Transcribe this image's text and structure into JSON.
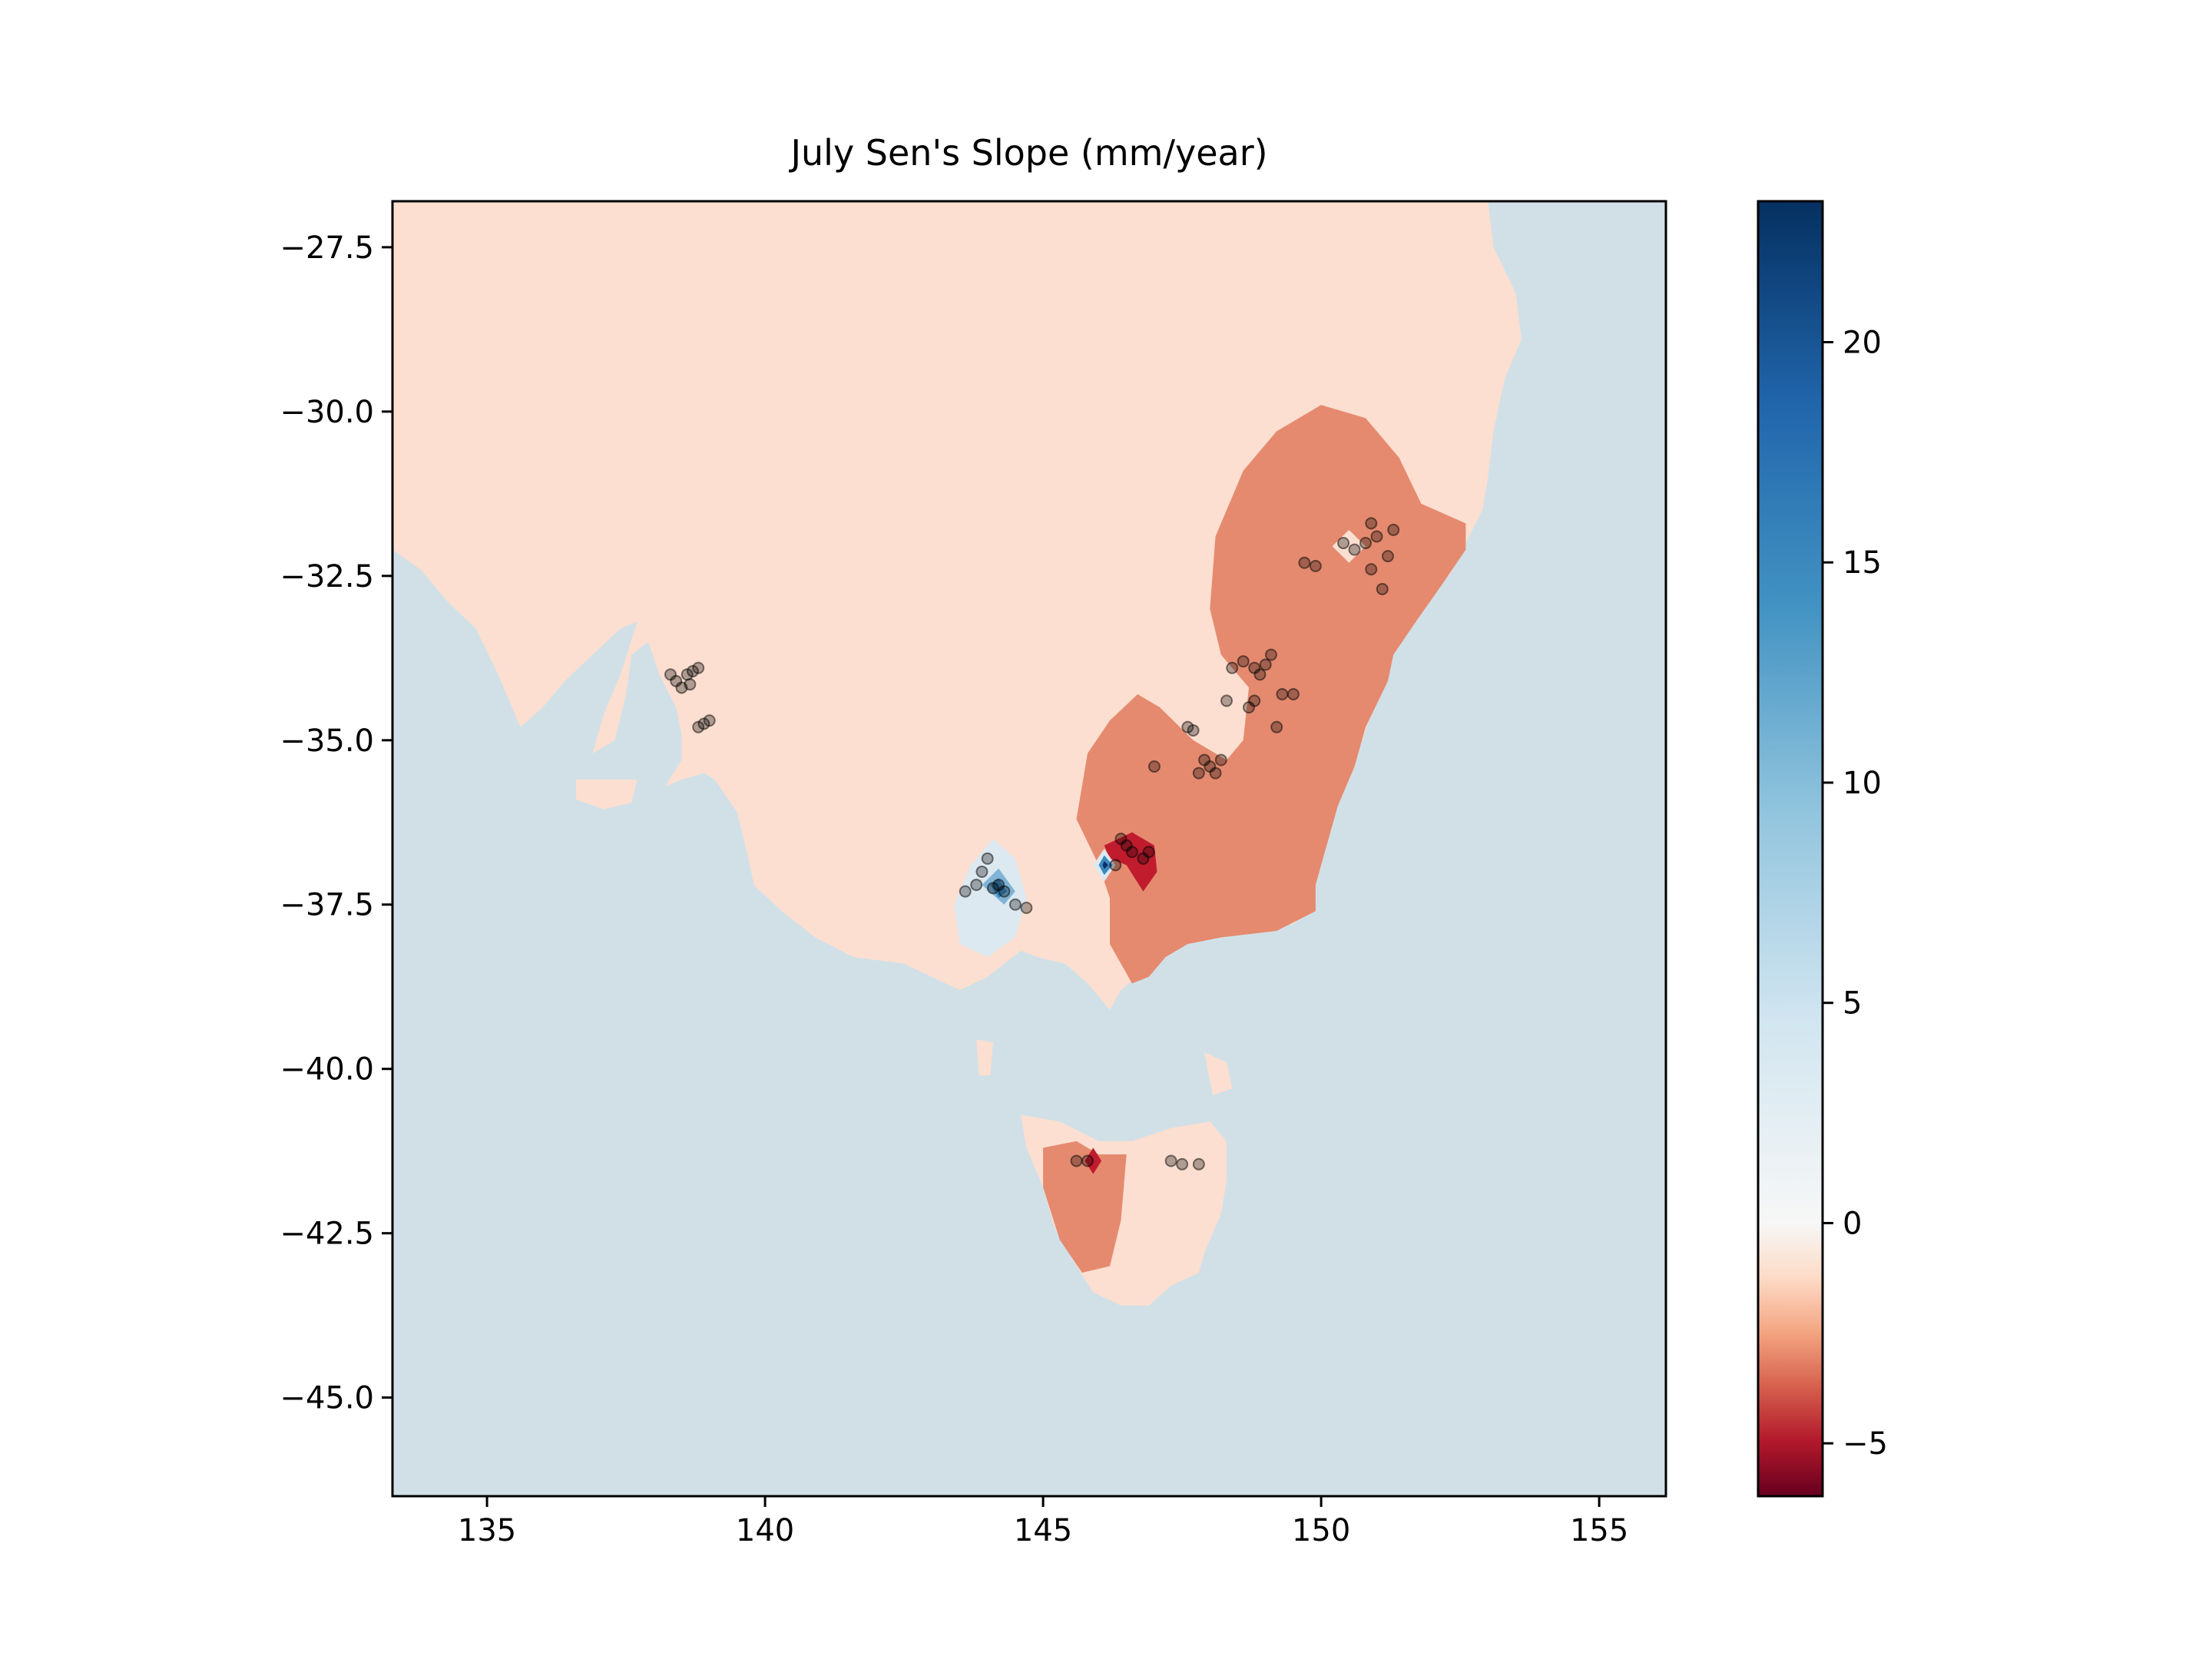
{
  "chart_data": {
    "type": "heatmap",
    "title": "July Sen's Slope (mm/year)",
    "xlabel": "",
    "ylabel": "",
    "xlim": [
      133.3,
      156.2
    ],
    "ylim": [
      -46.5,
      -26.8
    ],
    "x_ticks": [
      135,
      140,
      145,
      150,
      155
    ],
    "x_tick_labels": [
      "135",
      "140",
      "145",
      "150",
      "155"
    ],
    "y_ticks": [
      -27.5,
      -30.0,
      -32.5,
      -35.0,
      -37.5,
      -40.0,
      -42.5,
      -45.0
    ],
    "y_tick_labels": [
      "−27.5",
      "−30.0",
      "−32.5",
      "−35.0",
      "−37.5",
      "−40.0",
      "−42.5",
      "−45.0"
    ],
    "grid": false,
    "colorbar": {
      "colormap": "RdBu",
      "range": [
        -6.2,
        23.2
      ],
      "ticks": [
        -5,
        0,
        5,
        10,
        15,
        20
      ],
      "tick_labels": [
        "−5",
        "0",
        "5",
        "10",
        "15",
        "20"
      ],
      "placement": "right"
    },
    "colors": {
      "ocean": "#d1e0e7",
      "land_background": "#fcdfd0",
      "negative_region": "#e58a6f",
      "strong_negative": "#c01c2e",
      "positive_region": "#dde9f1",
      "strong_positive": "#3b89be"
    },
    "stations": [
      [
        138.3,
        -34.0
      ],
      [
        138.4,
        -34.1
      ],
      [
        138.5,
        -34.2
      ],
      [
        138.6,
        -34.0
      ],
      [
        138.7,
        -33.95
      ],
      [
        138.8,
        -33.9
      ],
      [
        138.65,
        -34.15
      ],
      [
        138.8,
        -34.8
      ],
      [
        138.9,
        -34.75
      ],
      [
        139.0,
        -34.7
      ],
      [
        143.9,
        -37.0
      ],
      [
        144.0,
        -36.8
      ],
      [
        143.8,
        -37.2
      ],
      [
        144.1,
        -37.25
      ],
      [
        144.3,
        -37.3
      ],
      [
        144.5,
        -37.5
      ],
      [
        144.7,
        -37.55
      ],
      [
        143.6,
        -37.3
      ],
      [
        144.2,
        -37.2
      ],
      [
        146.4,
        -36.5
      ],
      [
        146.6,
        -36.7
      ],
      [
        146.5,
        -36.6
      ],
      [
        146.8,
        -36.8
      ],
      [
        146.3,
        -36.9
      ],
      [
        146.9,
        -36.7
      ],
      [
        147.0,
        -35.4
      ],
      [
        147.6,
        -34.8
      ],
      [
        147.7,
        -34.85
      ],
      [
        147.9,
        -35.3
      ],
      [
        148.0,
        -35.4
      ],
      [
        148.2,
        -35.3
      ],
      [
        148.1,
        -35.5
      ],
      [
        147.8,
        -35.5
      ],
      [
        148.4,
        -33.9
      ],
      [
        148.6,
        -33.8
      ],
      [
        148.8,
        -33.9
      ],
      [
        149.0,
        -33.85
      ],
      [
        148.9,
        -34.0
      ],
      [
        149.1,
        -33.7
      ],
      [
        148.7,
        -34.5
      ],
      [
        148.8,
        -34.4
      ],
      [
        149.3,
        -34.3
      ],
      [
        149.5,
        -34.3
      ],
      [
        149.2,
        -34.8
      ],
      [
        148.3,
        -34.4
      ],
      [
        149.7,
        -32.3
      ],
      [
        149.9,
        -32.35
      ],
      [
        150.4,
        -32.0
      ],
      [
        150.6,
        -32.1
      ],
      [
        150.8,
        -32.0
      ],
      [
        151.0,
        -31.9
      ],
      [
        150.9,
        -31.7
      ],
      [
        151.3,
        -31.8
      ],
      [
        151.2,
        -32.2
      ],
      [
        151.1,
        -32.7
      ],
      [
        150.9,
        -32.4
      ],
      [
        145.6,
        -41.4
      ],
      [
        145.8,
        -41.4
      ],
      [
        147.3,
        -41.4
      ],
      [
        147.5,
        -41.45
      ],
      [
        147.8,
        -41.45
      ]
    ]
  }
}
